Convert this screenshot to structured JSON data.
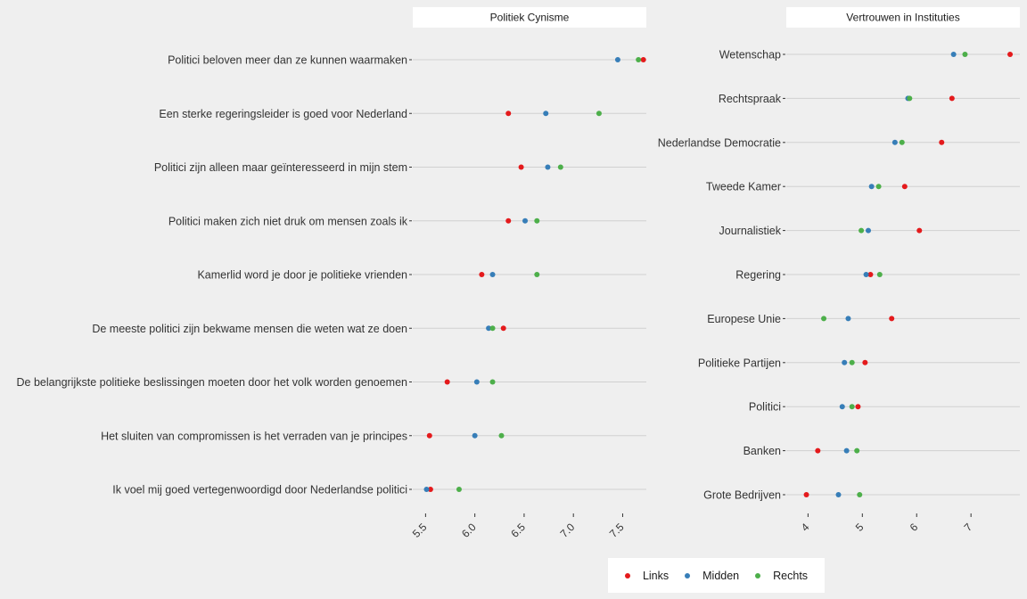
{
  "colors": {
    "Links": "#e41a1c",
    "Midden": "#377eb8",
    "Rechts": "#4daf4a",
    "grid": "#d0d0d0",
    "background": "#efefef",
    "strip": "#ffffff"
  },
  "legend": {
    "position": "bottom",
    "items": [
      {
        "label": "Links",
        "color": "#e41a1c"
      },
      {
        "label": "Midden",
        "color": "#377eb8"
      },
      {
        "label": "Rechts",
        "color": "#4daf4a"
      }
    ]
  },
  "chart_data": [
    {
      "type": "scatter",
      "title": "Politiek Cynisme",
      "xlim": [
        5.37,
        7.74
      ],
      "xticks": [
        5.5,
        6.0,
        6.5,
        7.0,
        7.5
      ],
      "xtick_labels": [
        "5.5",
        "6.0",
        "6.5",
        "7.0",
        "7.5"
      ],
      "grid": "horizontal",
      "categories": [
        "Politici beloven meer dan ze kunnen waarmaken",
        "Een sterke regeringsleider is goed voor Nederland",
        "Politici zijn alleen maar geïnteresseerd in mijn stem",
        "Politici maken zich niet druk om mensen zoals ik",
        "Kamerlid word je door je politieke vrienden",
        "De meeste politici zijn bekwame mensen die weten wat ze doen",
        "De belangrijkste politieke beslissingen moeten door het volk worden genoemen",
        "Het sluiten van compromissen is het verraden van je principes",
        "Ik voel mij goed vertegenwoordigd door Nederlandse politici"
      ],
      "series": [
        {
          "name": "Links",
          "values": [
            7.71,
            6.34,
            6.47,
            6.34,
            6.07,
            6.29,
            5.72,
            5.54,
            5.55
          ]
        },
        {
          "name": "Midden",
          "values": [
            7.45,
            6.72,
            6.74,
            6.51,
            6.18,
            6.14,
            6.02,
            6.0,
            5.51
          ]
        },
        {
          "name": "Rechts",
          "values": [
            7.66,
            7.26,
            6.87,
            6.63,
            6.63,
            6.18,
            6.18,
            6.27,
            5.84
          ]
        }
      ]
    },
    {
      "type": "scatter",
      "title": "Vertrouwen in Instituties",
      "xlim": [
        3.6,
        7.9
      ],
      "xticks": [
        4,
        5,
        6,
        7
      ],
      "xtick_labels": [
        "4",
        "5",
        "6",
        "7"
      ],
      "grid": "horizontal",
      "categories": [
        "Wetenschap",
        "Rechtspraak",
        "Nederlandse Democratie",
        "Tweede Kamer",
        "Journalistiek",
        "Regering",
        "Europese Unie",
        "Politieke Partijen",
        "Politici",
        "Banken",
        "Grote Bedrijven"
      ],
      "series": [
        {
          "name": "Links",
          "values": [
            7.72,
            6.65,
            6.46,
            5.78,
            6.05,
            5.15,
            5.54,
            5.05,
            4.92,
            4.18,
            3.97
          ]
        },
        {
          "name": "Midden",
          "values": [
            6.68,
            5.84,
            5.6,
            5.17,
            5.11,
            5.07,
            4.74,
            4.67,
            4.63,
            4.71,
            4.56
          ]
        },
        {
          "name": "Rechts",
          "values": [
            6.89,
            5.87,
            5.73,
            5.3,
            4.98,
            5.32,
            4.29,
            4.81,
            4.81,
            4.9,
            4.95
          ]
        }
      ]
    }
  ]
}
